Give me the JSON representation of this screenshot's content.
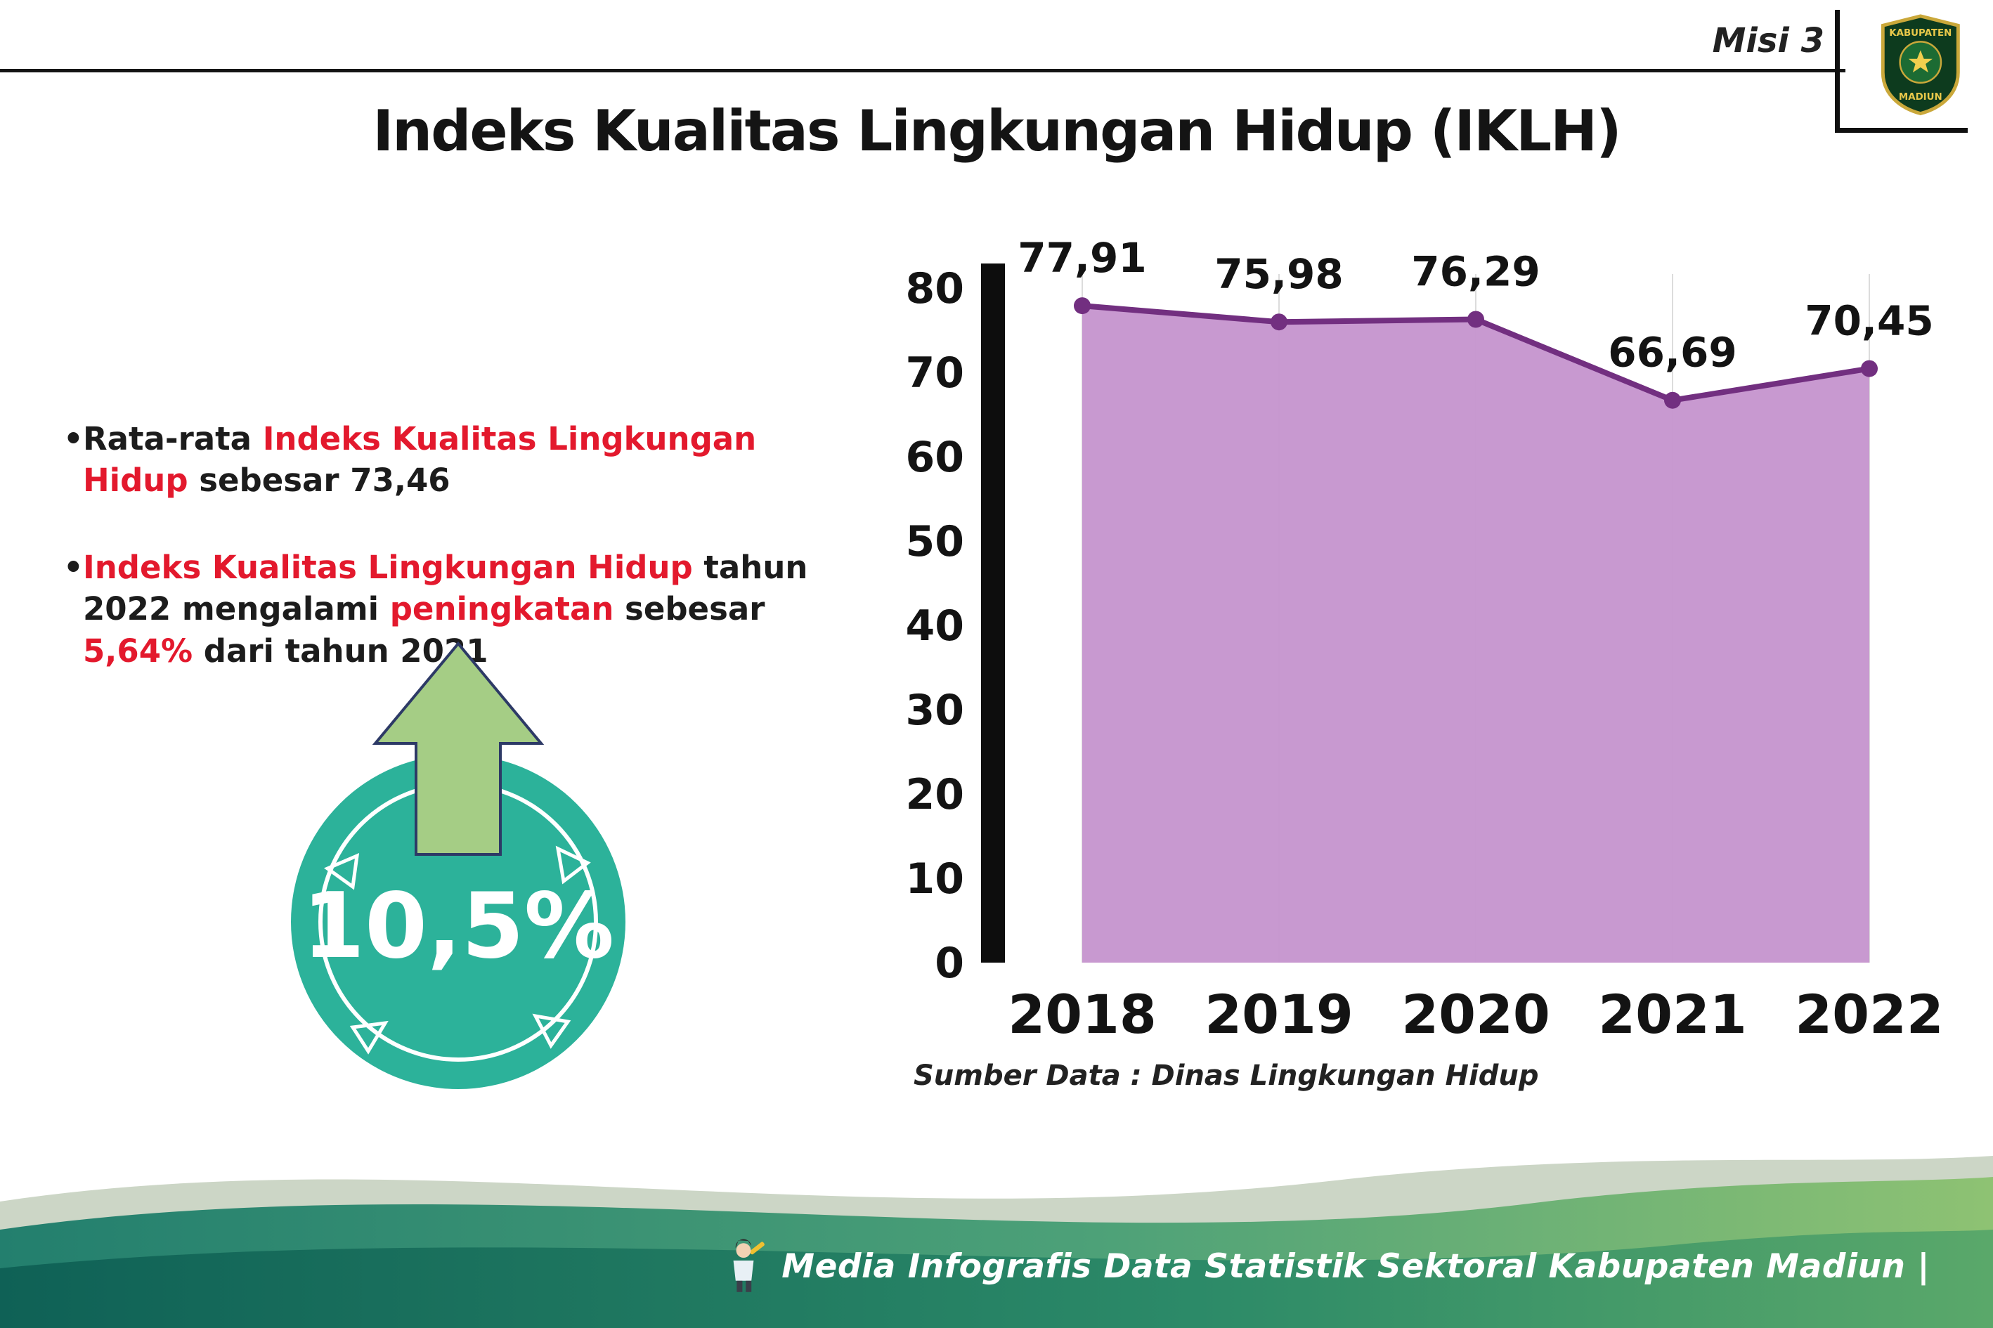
{
  "header": {
    "misi_label": "Misi 3"
  },
  "logo": {
    "name": "Kabupaten Madiun",
    "text_top": "KABUPATEN",
    "text_bottom": "MADIUN"
  },
  "title": "Indeks Kualitas Lingkungan Hidup (IKLH)",
  "bullets": [
    {
      "parts": [
        {
          "text": "Rata-rata ",
          "color": "dark"
        },
        {
          "text": "Indeks Kualitas Lingkungan Hidup",
          "color": "red"
        },
        {
          "text": " sebesar 73,46",
          "color": "dark"
        }
      ]
    },
    {
      "parts": [
        {
          "text": "Indeks Kualitas Lingkungan Hidup",
          "color": "red"
        },
        {
          "text": " tahun 2022 mengalami ",
          "color": "dark"
        },
        {
          "text": "peningkatan",
          "color": "red"
        },
        {
          "text": " sebesar ",
          "color": "dark"
        },
        {
          "text": "5,64%",
          "color": "red"
        },
        {
          "text": " dari tahun 2021",
          "color": "dark"
        }
      ]
    }
  ],
  "badge": {
    "value": "10,5%"
  },
  "chart_data": {
    "type": "area",
    "title": "Indeks Kualitas Lingkungan Hidup (IKLH)",
    "categories": [
      "2018",
      "2019",
      "2020",
      "2021",
      "2022"
    ],
    "values": [
      77.91,
      75.98,
      76.29,
      66.69,
      70.45
    ],
    "value_labels": [
      "77,91",
      "75,98",
      "76,29",
      "66,69",
      "70,45"
    ],
    "ylim": [
      0,
      80
    ],
    "yticks": [
      0,
      10,
      20,
      30,
      40,
      50,
      60,
      70,
      80
    ],
    "xlabel": "",
    "ylabel": "",
    "grid": "vertical-light",
    "legend": "none",
    "line_color": "#722f80",
    "point_color": "#722f80",
    "fill_color": "#c593cd",
    "source_note": "Sumber Data : Dinas Lingkungan Hidup"
  },
  "footer": {
    "credit": "Media Infografis Data Statistik Sektoral Kabupaten Madiun |"
  },
  "colors": {
    "accent_red": "#e3192d",
    "badge_teal": "#2cb29a",
    "arrow_green": "#a5cd85",
    "chart_line_purple": "#722f80",
    "chart_fill_purple": "#c593cd",
    "footer_teal_dark": "#0f6156",
    "footer_green_light": "#8ec273"
  }
}
